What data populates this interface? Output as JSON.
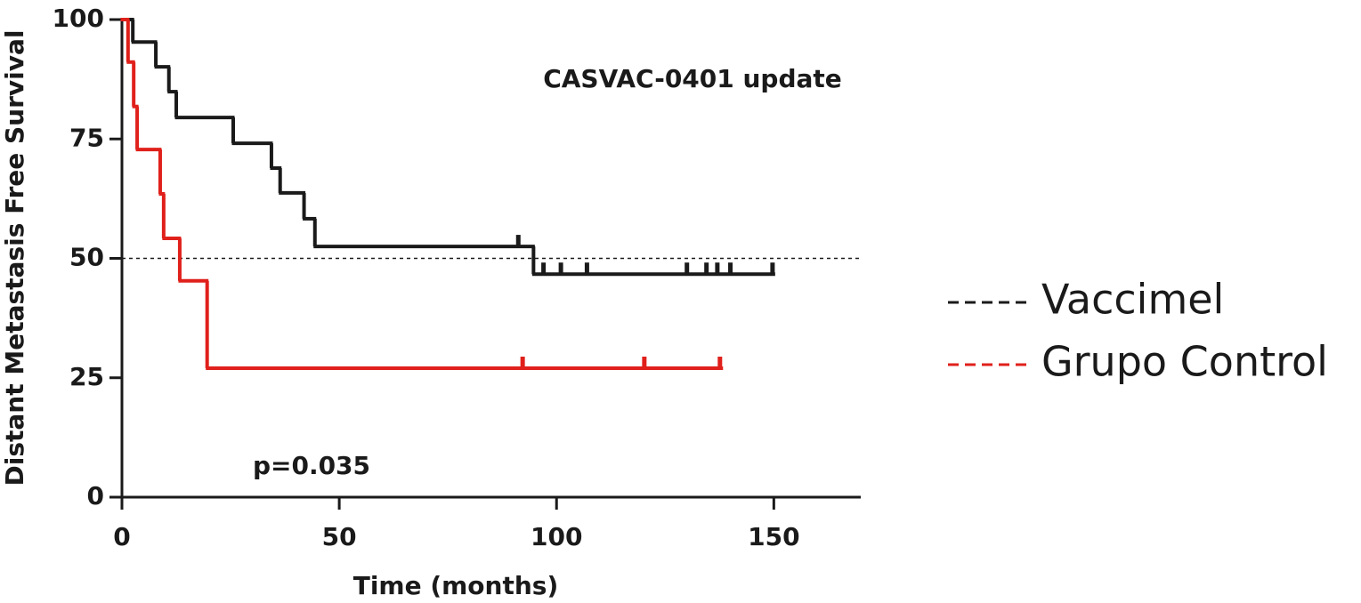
{
  "chart_data": {
    "type": "step",
    "title": "CASVAC-0401 update",
    "annotation": "p=0.035",
    "x_label": "Time (months)",
    "y_label": "Distant Metastasis Free Survival",
    "xlim": [
      0,
      170
    ],
    "xticks": [
      0,
      50,
      100,
      150
    ],
    "ylim": [
      0,
      100
    ],
    "yticks": [
      0,
      25,
      50,
      75,
      100
    ],
    "hline": 50,
    "series": [
      {
        "name": "Vaccimel",
        "color": "#1a1a1a",
        "x": [
          0,
          2.5,
          7.8,
          10.8,
          12.5,
          25.6,
          34.4,
          36.4,
          41.9,
          44.4,
          94.7,
          150
        ],
        "values": [
          100,
          95.3,
          90.1,
          84.9,
          79.5,
          74.1,
          68.9,
          63.7,
          58.3,
          52.5,
          46.7,
          46.7
        ],
        "censor_x": [
          91.2,
          97,
          101,
          107,
          130,
          134.5,
          137,
          140,
          149.7
        ],
        "censor_values": [
          52.5,
          46.7,
          46.7,
          46.7,
          46.7,
          46.7,
          46.7,
          46.7,
          46.7
        ]
      },
      {
        "name": "Grupo Control",
        "color": "#e0201b",
        "x": [
          0,
          1.4,
          2.7,
          3.5,
          8.8,
          9.6,
          13.3,
          19.6,
          138
        ],
        "values": [
          100,
          91.1,
          81.8,
          72.8,
          63.5,
          54.2,
          45.3,
          27.0,
          27.0
        ],
        "censor_x": [
          92.2,
          120.2,
          137.6
        ],
        "censor_values": [
          27.0,
          27.0,
          27.0
        ]
      }
    ]
  }
}
